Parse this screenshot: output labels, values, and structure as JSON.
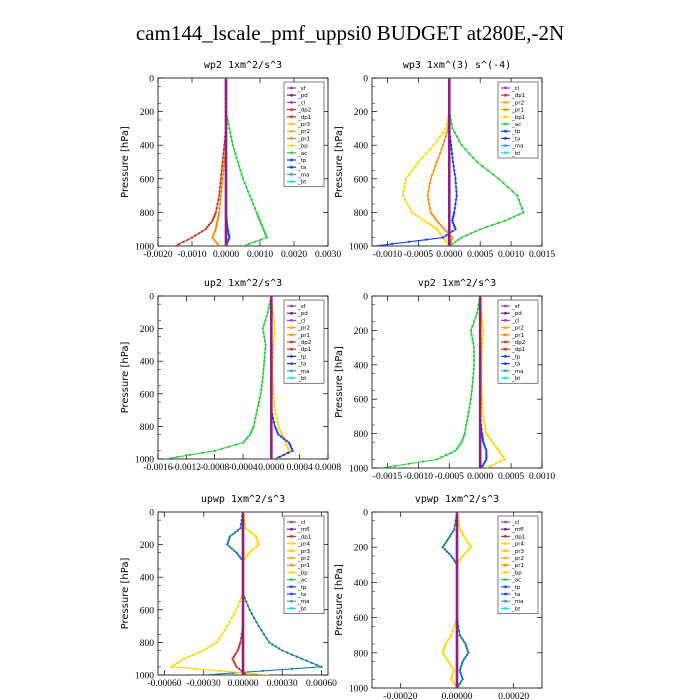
{
  "figure_title": "cam144_lscale_pmf_uppsi0  BUDGET at280E,-2N",
  "colors": {
    "sf": "#8e44ad",
    "pd": "#7b1f7b",
    "cl": "#a040c0",
    "dp1": "#c0392b",
    "dp2": "#c0392b",
    "pr1": "#ff8c00",
    "pr2": "#ffa500",
    "pr3": "#ffc000",
    "pr4": "#ffd700",
    "bp": "#ffd700",
    "bp1": "#ffd700",
    "ac": "#2ecc40",
    "tp": "#1a3cff",
    "ta": "#1a3cff",
    "ma": "#40a0c0",
    "bt": "#00e5ff",
    "mfl": "#7b1f7b",
    "total": "#8e2080"
  },
  "chart_data": [
    {
      "type": "line",
      "title": "wp2  1xm^2/s^3",
      "ylabel": "Pressure [hPa]",
      "xlim": [
        -0.002,
        0.003
      ],
      "ylim": [
        1000,
        0
      ],
      "xticks": [
        -0.002,
        -0.001,
        0.0,
        0.001,
        0.002,
        0.003
      ],
      "xticklabels": [
        "-0.0020",
        "-0.0010",
        "0.0000",
        "0.0010",
        "0.0020",
        "0.0030"
      ],
      "yticks": [
        0,
        200,
        400,
        600,
        800,
        1000
      ],
      "legend": [
        "_sf",
        "_pd",
        "_cl",
        "_dp2",
        "_dp1",
        "_pr3",
        "_pr2",
        "_pr1",
        "_bp",
        "_ac",
        "_tp",
        "_ta",
        "_ma",
        "_bt"
      ],
      "legend_position": "top-right",
      "pressure": [
        0,
        100,
        200,
        300,
        400,
        500,
        600,
        700,
        800,
        850,
        900,
        950,
        1000
      ],
      "series": [
        {
          "name": "_ac",
          "color": "#2ecc40",
          "values": [
            0,
            0,
            0,
            0.0001,
            0.0002,
            0.00035,
            0.0005,
            0.0007,
            0.0009,
            0.001,
            0.0011,
            0.0012,
            0.0005
          ]
        },
        {
          "name": "_dp1",
          "color": "#c0392b",
          "values": [
            0,
            0,
            0,
            0,
            -5e-05,
            -0.0001,
            -0.00015,
            -0.0002,
            -0.0003,
            -0.0004,
            -0.0006,
            -0.001,
            -0.0015
          ]
        },
        {
          "name": "_pr1",
          "color": "#ff8c00",
          "values": [
            0,
            0,
            0,
            0,
            0,
            -5e-05,
            -0.0001,
            -0.00015,
            -0.0002,
            -0.00025,
            -0.0003,
            -0.0004,
            -0.0002
          ]
        },
        {
          "name": "_tp",
          "color": "#1a3cff",
          "values": [
            0,
            0,
            0,
            0,
            0,
            0,
            0,
            0,
            0,
            2e-05,
            5e-05,
            0.0001,
            0
          ]
        },
        {
          "name": "_sf",
          "color": "#8e2080",
          "values": [
            0,
            0,
            0,
            0,
            0,
            0,
            0,
            0,
            0,
            0,
            0,
            0,
            0
          ]
        }
      ]
    },
    {
      "type": "line",
      "title": "wp3  1xm^(3) s^(-4)",
      "ylabel": "Pressure [hPa]",
      "xlim": [
        -0.00125,
        0.0015
      ],
      "ylim": [
        1000,
        0
      ],
      "xticks": [
        -0.001,
        -0.0005,
        0.0,
        0.0005,
        0.001,
        0.0015
      ],
      "xticklabels": [
        "-0.0010",
        "-0.0005",
        "0.0000",
        "0.0005",
        "0.0010",
        "0.0015"
      ],
      "yticks": [
        0,
        200,
        400,
        600,
        800,
        1000
      ],
      "legend": [
        "_cl",
        "_dp1",
        "_pr2",
        "_pr1",
        "_bp1",
        "_ac",
        "_tp",
        "_ta",
        "_ma",
        "_bt"
      ],
      "legend_position": "top-right",
      "pressure": [
        0,
        100,
        200,
        300,
        400,
        500,
        600,
        700,
        800,
        850,
        900,
        950,
        1000
      ],
      "series": [
        {
          "name": "_ac",
          "color": "#2ecc40",
          "values": [
            0,
            0,
            0,
            5e-05,
            0.0002,
            0.00045,
            0.0008,
            0.0011,
            0.0012,
            0.0009,
            0.0005,
            0.0002,
            0
          ]
        },
        {
          "name": "_bp1",
          "color": "#ffd700",
          "values": [
            0,
            0,
            0,
            -5e-05,
            -0.00025,
            -0.0005,
            -0.0007,
            -0.00075,
            -0.0006,
            -0.0004,
            -0.0002,
            -0.0001,
            0
          ]
        },
        {
          "name": "_pr2",
          "color": "#ff8c00",
          "values": [
            0,
            0,
            0,
            -2e-05,
            -0.0001,
            -0.0002,
            -0.0003,
            -0.00035,
            -0.0003,
            -0.0002,
            -8e-05,
            5e-05,
            0
          ]
        },
        {
          "name": "_tp",
          "color": "#1a3cff",
          "values": [
            0,
            0,
            0,
            0,
            3e-05,
            6e-05,
            0.0001,
            0.00012,
            8e-05,
            5e-05,
            0.0001,
            -0.0001,
            -0.0012
          ]
        },
        {
          "name": "_cl",
          "color": "#8e2080",
          "values": [
            0,
            0,
            0,
            0,
            0,
            0,
            0,
            0,
            0,
            0,
            0,
            0,
            0
          ]
        }
      ]
    },
    {
      "type": "line",
      "title": "up2  1xm^2/s^3",
      "ylabel": "Pressure [hPa]",
      "xlim": [
        -0.0016,
        0.0008
      ],
      "ylim": [
        1000,
        0
      ],
      "xticks": [
        -0.0016,
        -0.0012,
        -0.0008,
        -0.0004,
        0.0,
        0.0004,
        0.0008
      ],
      "xticklabels": [
        "-0.0016",
        "-0.0012",
        "-0.0008",
        "-0.0004",
        "0.0000",
        "0.0004",
        "0.0008"
      ],
      "yticks": [
        0,
        200,
        400,
        600,
        800,
        1000
      ],
      "legend": [
        "_sf",
        "_pd",
        "_cl",
        "_pr2",
        "_pr1",
        "_dp2",
        "_dp1",
        "_tp",
        "_ta",
        "_ma",
        "_bt"
      ],
      "legend_position": "top-right",
      "pressure": [
        0,
        100,
        200,
        300,
        400,
        500,
        600,
        700,
        800,
        850,
        900,
        950,
        1000
      ],
      "series": [
        {
          "name": "_dp1",
          "color": "#2ecc40",
          "values": [
            0,
            -5e-05,
            -0.00012,
            -8e-05,
            -0.0001,
            -0.00012,
            -0.00015,
            -0.0002,
            -0.00025,
            -0.0003,
            -0.0004,
            -0.0008,
            -0.0015
          ]
        },
        {
          "name": "_pr1",
          "color": "#ffd700",
          "values": [
            0,
            2e-05,
            5e-05,
            3e-05,
            2e-05,
            2e-05,
            3e-05,
            5e-05,
            0.0001,
            0.00015,
            0.0002,
            0.00025,
            0.0001
          ]
        },
        {
          "name": "_tp",
          "color": "#1a3cff",
          "values": [
            0,
            0,
            0,
            0,
            0,
            0,
            0,
            0,
            5e-05,
            0.0001,
            0.00025,
            0.0003,
            5e-05
          ]
        },
        {
          "name": "_sf",
          "color": "#8e2080",
          "values": [
            0,
            0,
            0,
            0,
            0,
            0,
            0,
            0,
            0,
            0,
            0,
            0,
            0
          ]
        }
      ]
    },
    {
      "type": "line",
      "title": "vp2  1xm^2/s^3",
      "ylabel": "Pressure [hPa]",
      "xlim": [
        -0.00175,
        0.001
      ],
      "ylim": [
        1000,
        0
      ],
      "xticks": [
        -0.0015,
        -0.001,
        -0.0005,
        0.0,
        0.0005,
        0.001
      ],
      "xticklabels": [
        "-0.0015",
        "-0.0010",
        "-0.0005",
        "0.0000",
        "0.0005",
        "0.0010"
      ],
      "yticks": [
        0,
        200,
        400,
        600,
        800,
        1000
      ],
      "legend": [
        "_sf",
        "_pd",
        "_cl",
        "_pr2",
        "_pr1",
        "_dp2",
        "_dp1",
        "_tp",
        "_ta",
        "_ma",
        "_bt"
      ],
      "legend_position": "top-right",
      "pressure": [
        0,
        100,
        200,
        300,
        400,
        500,
        600,
        700,
        800,
        850,
        900,
        950,
        1000
      ],
      "series": [
        {
          "name": "_dp1",
          "color": "#2ecc40",
          "values": [
            0,
            -5e-05,
            -0.00015,
            -0.0001,
            -0.0001,
            -0.00012,
            -0.00015,
            -0.0002,
            -0.00025,
            -0.0003,
            -0.0004,
            -0.0007,
            -0.0016
          ]
        },
        {
          "name": "_pr1",
          "color": "#ffd700",
          "values": [
            0,
            2e-05,
            5e-05,
            3e-05,
            2e-05,
            2e-05,
            3e-05,
            5e-05,
            0.0001,
            0.0002,
            0.0003,
            0.0004,
            0.0001
          ]
        },
        {
          "name": "_tp",
          "color": "#1a3cff",
          "values": [
            0,
            0,
            0,
            0,
            0,
            0,
            0,
            0,
            3e-05,
            5e-05,
            0.0001,
            0.0001,
            2e-05
          ]
        },
        {
          "name": "_sf",
          "color": "#8e2080",
          "values": [
            0,
            0,
            0,
            0,
            0,
            0,
            0,
            0,
            0,
            0,
            0,
            0,
            0
          ]
        }
      ]
    },
    {
      "type": "line",
      "title": "upwp  1xm^2/s^3",
      "ylabel": "Pressure [hPa]",
      "xlim": [
        -0.00065,
        0.00065
      ],
      "ylim": [
        1000,
        0
      ],
      "xticks": [
        -0.0006,
        -0.0003,
        0.0,
        0.0003,
        0.0006
      ],
      "xticklabels": [
        "-0.00060",
        "-0.00030",
        "0.00000",
        "0.00030",
        "0.00060"
      ],
      "yticks": [
        0,
        200,
        400,
        600,
        800,
        1000
      ],
      "legend": [
        "_cl",
        "_mfl",
        "_dp1",
        "_pr4",
        "_pr3",
        "_pr2",
        "_pr1",
        "_bp",
        "_ac",
        "_tp",
        "_ta",
        "_ma",
        "_bt"
      ],
      "legend_position": "top-right",
      "pressure": [
        0,
        100,
        150,
        200,
        250,
        300,
        400,
        500,
        600,
        700,
        800,
        850,
        900,
        950,
        1000
      ],
      "series": [
        {
          "name": "_tp",
          "color": "#1a7aa8",
          "values": [
            0,
            -2e-05,
            -0.0001,
            -0.00012,
            -5e-05,
            0,
            0,
            0,
            5e-05,
            0.00012,
            0.0002,
            0.0003,
            0.00045,
            0.0006,
            -0.0003
          ]
        },
        {
          "name": "_pr1",
          "color": "#ffd700",
          "values": [
            0,
            2e-05,
            0.0001,
            0.00012,
            5e-05,
            0,
            0,
            0,
            -5e-05,
            -0.00012,
            -0.0002,
            -0.0003,
            -0.00045,
            -0.00055,
            0.0002
          ]
        },
        {
          "name": "_dp1",
          "color": "#c0392b",
          "values": [
            0,
            0,
            0,
            0,
            0,
            0,
            0,
            0,
            0,
            0,
            -2e-05,
            -4e-05,
            -8e-05,
            -5e-05,
            3e-05
          ]
        },
        {
          "name": "_cl",
          "color": "#8e2080",
          "values": [
            0,
            0,
            0,
            0,
            0,
            0,
            0,
            0,
            0,
            0,
            0,
            0,
            0,
            0,
            0
          ]
        }
      ]
    },
    {
      "type": "line",
      "title": "vpwp  1xm^2/s^3",
      "ylabel": "Pressure [hPa]",
      "xlim": [
        -0.0003,
        0.0003
      ],
      "ylim": [
        1000,
        0
      ],
      "xticks": [
        -0.0002,
        0.0,
        0.0002
      ],
      "xticklabels": [
        "-0.00020",
        "0.00000",
        "0.00020"
      ],
      "yticks": [
        0,
        200,
        400,
        600,
        800,
        1000
      ],
      "legend": [
        "_cl",
        "_mfl",
        "_dp1",
        "_pr4",
        "_pr3",
        "_pr2",
        "_pr1",
        "_bp",
        "_ac",
        "_tp",
        "_ta",
        "_ma",
        "_bt"
      ],
      "legend_position": "top-right",
      "pressure": [
        0,
        100,
        150,
        200,
        250,
        300,
        400,
        500,
        600,
        700,
        750,
        800,
        850,
        900,
        950,
        1000
      ],
      "series": [
        {
          "name": "_tp",
          "color": "#1a7aa8",
          "values": [
            0,
            -1e-05,
            -3e-05,
            -5e-05,
            -2e-05,
            0,
            0,
            0,
            0,
            1e-05,
            3e-05,
            4e-05,
            2e-05,
            1e-05,
            2e-05,
            0
          ]
        },
        {
          "name": "_pr1",
          "color": "#ffd700",
          "values": [
            0,
            1e-05,
            3e-05,
            5e-05,
            2e-05,
            0,
            0,
            0,
            0,
            -2e-05,
            -4e-05,
            -5e-05,
            -3e-05,
            -1e-05,
            -2e-05,
            0
          ]
        },
        {
          "name": "_cl",
          "color": "#8e2080",
          "values": [
            0,
            0,
            0,
            0,
            0,
            0,
            0,
            0,
            0,
            0,
            0,
            0,
            0,
            0,
            0,
            0
          ]
        }
      ]
    }
  ]
}
